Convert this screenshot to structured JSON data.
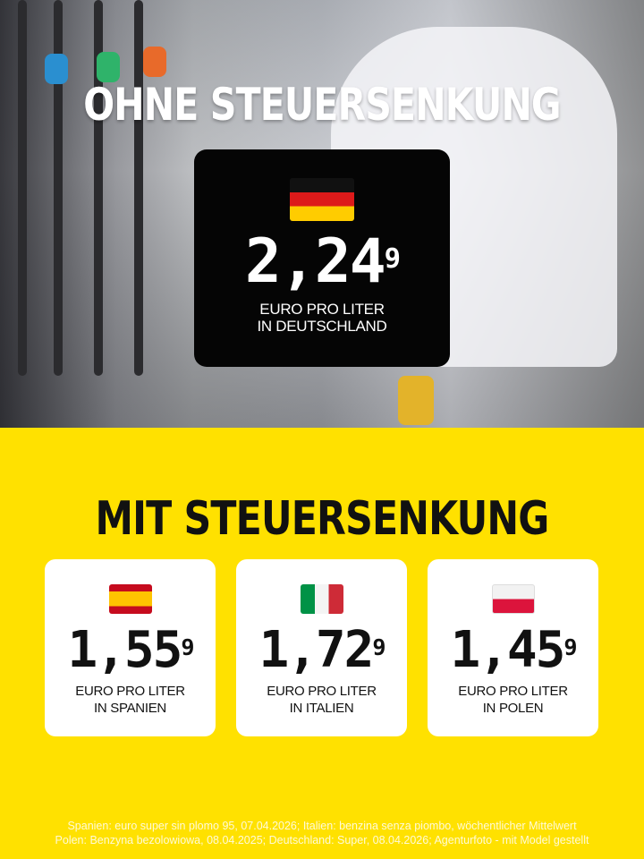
{
  "headline_top": "OHNE STEUERSENKUNG",
  "headline_mid": "MIT STEUERSENKUNG",
  "germany": {
    "price": "2,24",
    "price_sup": "9",
    "line1": "EURO PRO LITER",
    "line2": "IN DEUTSCHLAND",
    "flag": "germany-flag"
  },
  "cards": [
    {
      "price": "1,55",
      "price_sup": "9",
      "line1": "EURO PRO LITER",
      "line2": "IN SPANIEN",
      "flag": "spain-flag"
    },
    {
      "price": "1,72",
      "price_sup": "9",
      "line1": "EURO PRO LITER",
      "line2": "IN ITALIEN",
      "flag": "italy-flag"
    },
    {
      "price": "1,45",
      "price_sup": "9",
      "line1": "EURO PRO LITER",
      "line2": "IN POLEN",
      "flag": "poland-flag"
    }
  ],
  "footer": {
    "line1": "Spanien: euro super sin plomo 95, 07.04.2026; Italien: benzina senza piombo, wöchentlicher Mittelwert",
    "line2": "Polen: Benzyna bezolowiowa, 08.04.2025; Deutschland: Super, 08.04.2026; Agenturfoto - mit Model gestellt"
  },
  "colors": {
    "background": "#ffe100",
    "box": "#050505",
    "text": "#111111"
  }
}
